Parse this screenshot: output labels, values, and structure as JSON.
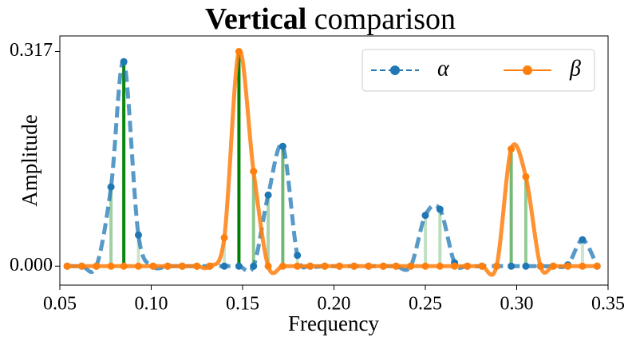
{
  "chart_data": {
    "type": "line",
    "title": {
      "bold": "Vertical",
      "text": "comparison"
    },
    "x_label": "Frequency",
    "y_label": "Amplitude",
    "x": [
      0.054,
      0.062,
      0.07,
      0.078,
      0.085,
      0.093,
      0.101,
      0.109,
      0.117,
      0.125,
      0.132,
      0.14,
      0.148,
      0.156,
      0.164,
      0.172,
      0.18,
      0.187,
      0.195,
      0.203,
      0.211,
      0.219,
      0.227,
      0.234,
      0.242,
      0.25,
      0.258,
      0.266,
      0.273,
      0.281,
      0.289,
      0.297,
      0.305,
      0.313,
      0.32,
      0.328,
      0.336,
      0.344
    ],
    "series": [
      {
        "name": "α",
        "color": "#1f77b4",
        "dashed": true,
        "values": [
          0,
          0,
          0,
          0.117,
          0.302,
          0.046,
          0,
          0,
          0,
          0,
          0,
          0,
          0,
          0,
          0.105,
          0.177,
          0.016,
          0,
          0,
          0,
          0,
          0,
          0,
          0,
          0,
          0.075,
          0.084,
          0.005,
          0,
          0,
          0,
          0,
          0,
          0,
          0,
          0.002,
          0.039,
          0
        ]
      },
      {
        "name": "β",
        "color": "#ff7f0e",
        "dashed": false,
        "values": [
          0,
          0,
          0,
          0,
          0,
          0,
          0,
          0,
          0,
          0,
          0,
          0.042,
          0.317,
          0.14,
          0,
          0,
          0,
          0,
          0,
          0,
          0,
          0,
          0,
          0,
          0,
          0,
          0,
          0,
          0,
          0,
          0,
          0.173,
          0.132,
          0,
          0,
          0,
          0,
          0
        ]
      }
    ],
    "stem_color": "#008000",
    "xlim": [
      0.05,
      0.35
    ],
    "xticks": [
      {
        "value": 0.05,
        "label": "0.05"
      },
      {
        "value": 0.1,
        "label": "0.10"
      },
      {
        "value": 0.15,
        "label": "0.15"
      },
      {
        "value": 0.2,
        "label": "0.20"
      },
      {
        "value": 0.25,
        "label": "0.25"
      },
      {
        "value": 0.3,
        "label": "0.30"
      },
      {
        "value": 0.35,
        "label": "0.35"
      }
    ],
    "ylim": [
      -0.028,
      0.34
    ],
    "yticks": [
      {
        "value": 0,
        "label": "0.000"
      },
      {
        "value": 0.317,
        "label": "0.317"
      }
    ],
    "legend": "upper right"
  }
}
